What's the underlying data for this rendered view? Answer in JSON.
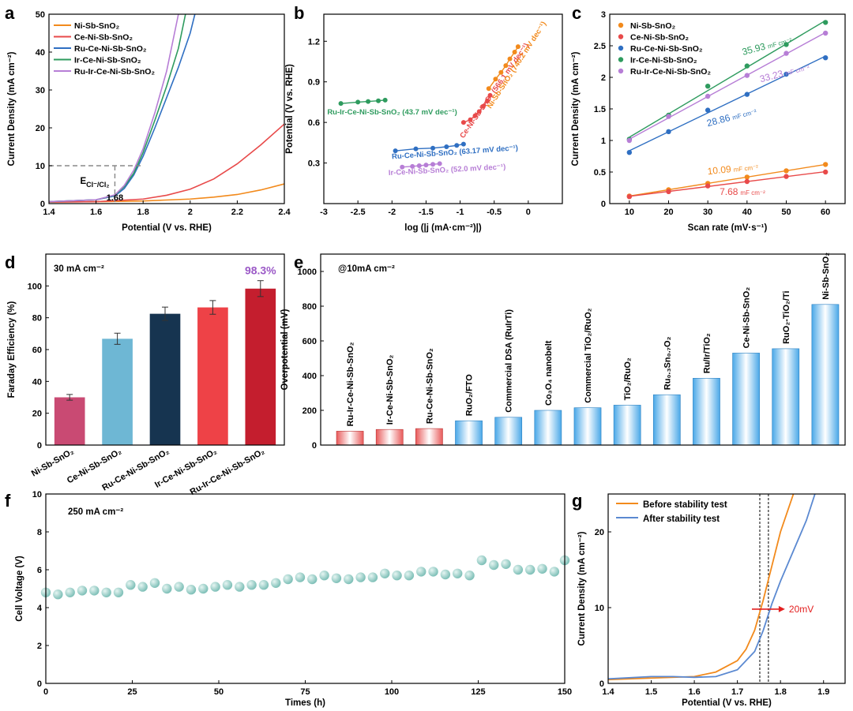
{
  "panels": {
    "a": {
      "letter": "a"
    },
    "b": {
      "letter": "b"
    },
    "c": {
      "letter": "c"
    },
    "d": {
      "letter": "d"
    },
    "e": {
      "letter": "e"
    },
    "f": {
      "letter": "f"
    },
    "g": {
      "letter": "g"
    }
  },
  "chart_data": [
    {
      "id": "a",
      "type": "line",
      "xlabel": "Potential (V vs. RHE)",
      "ylabel": "Current Density (mA cm⁻²)",
      "xlim": [
        1.4,
        2.4
      ],
      "ylim": [
        0,
        50
      ],
      "xticks": [
        1.4,
        1.6,
        1.8,
        2.0,
        2.2,
        2.4
      ],
      "yticks": [
        0,
        10,
        20,
        30,
        40,
        50
      ],
      "extra_tick": "1.68",
      "annotation_main": "E",
      "annotation_sub": "Cl⁻/Cl₂",
      "annotation_x": 1.68,
      "annotation_y": 10,
      "series": [
        {
          "name": "Ni-Sb-SnO₂",
          "color": "#f28a1c",
          "x": [
            1.4,
            1.6,
            1.8,
            2.0,
            2.1,
            2.2,
            2.3,
            2.4
          ],
          "y": [
            0.4,
            0.5,
            0.7,
            1.2,
            1.7,
            2.4,
            3.6,
            5.2
          ]
        },
        {
          "name": "Ce-Ni-Sb-SnO₂",
          "color": "#e84a4a",
          "x": [
            1.4,
            1.6,
            1.8,
            1.9,
            2.0,
            2.1,
            2.2,
            2.3,
            2.4
          ],
          "y": [
            0.4,
            0.5,
            1.2,
            2.2,
            3.8,
            6.5,
            10.5,
            15.5,
            21.0
          ]
        },
        {
          "name": "Ru-Ce-Ni-Sb-SnO₂",
          "color": "#2f6fc2",
          "x": [
            1.4,
            1.6,
            1.68,
            1.72,
            1.76,
            1.8,
            1.85,
            1.9,
            1.95,
            2.0,
            2.02
          ],
          "y": [
            0.5,
            1.0,
            2.0,
            4.0,
            7.5,
            12.5,
            20.0,
            28.0,
            36.0,
            45.0,
            50.0
          ]
        },
        {
          "name": "Ir-Ce-Ni-Sb-SnO₂",
          "color": "#2e9b5e",
          "x": [
            1.4,
            1.6,
            1.68,
            1.72,
            1.76,
            1.8,
            1.85,
            1.9,
            1.95,
            1.98
          ],
          "y": [
            0.5,
            1.0,
            2.2,
            4.5,
            8.0,
            13.5,
            22.0,
            31.0,
            41.0,
            50.0
          ]
        },
        {
          "name": "Ru-Ir-Ce-Ni-Sb-SnO₂",
          "color": "#b77ed6",
          "x": [
            1.4,
            1.6,
            1.68,
            1.72,
            1.76,
            1.8,
            1.85,
            1.9,
            1.95
          ],
          "y": [
            0.5,
            1.0,
            2.3,
            4.8,
            8.8,
            14.5,
            24.0,
            35.0,
            50.0
          ]
        }
      ]
    },
    {
      "id": "b",
      "type": "scatter",
      "xlabel": "log (|j (mA·cm⁻²)|)",
      "ylabel": "Potential (V vs. RHE)",
      "xlim": [
        -3.0,
        0.5
      ],
      "ylim": [
        0.0,
        1.4
      ],
      "xticks": [
        -3.0,
        -2.5,
        -2.0,
        -1.5,
        -1.0,
        -0.5,
        0.0
      ],
      "yticks": [
        0.3,
        0.6,
        0.9,
        1.2
      ],
      "series": [
        {
          "name": "Ru-Ir-Ce-Ni-Sb-SnO₂",
          "color": "#2e9b5e",
          "label": "Ru-Ir-Ce-Ni-Sb-SnO₂ (43.7 mV dec⁻¹)",
          "x": [
            -2.75,
            -2.5,
            -2.35,
            -2.2,
            -2.1
          ],
          "y": [
            0.74,
            0.75,
            0.755,
            0.76,
            0.765
          ]
        },
        {
          "name": "Ru-Ce-Ni-Sb-SnO₂",
          "color": "#2f6fc2",
          "label": "Ru-Ce-Ni-Sb-SnO₂ (63.17 mV dec⁻¹)",
          "x": [
            -1.95,
            -1.65,
            -1.4,
            -1.2,
            -1.05,
            -0.95
          ],
          "y": [
            0.39,
            0.405,
            0.41,
            0.42,
            0.43,
            0.44
          ]
        },
        {
          "name": "Ir-Ce-Ni-Sb-SnO₂",
          "color": "#b77ed6",
          "label": "Ir-Ce-Ni-Sb-SnO₂ (52.0 mV dec⁻¹)",
          "x": [
            -1.85,
            -1.7,
            -1.6,
            -1.5,
            -1.4,
            -1.3
          ],
          "y": [
            0.27,
            0.275,
            0.28,
            0.285,
            0.29,
            0.295
          ]
        },
        {
          "name": "Ce-Ni-Sb-SnO₂",
          "color": "#e84a4a",
          "label": "Ce-Ni-Sb-SnO₂ (566.1 mV dec⁻¹)",
          "x": [
            -0.95,
            -0.85,
            -0.78,
            -0.72,
            -0.66,
            -0.6,
            -0.56
          ],
          "y": [
            0.6,
            0.62,
            0.65,
            0.68,
            0.72,
            0.76,
            0.8
          ]
        },
        {
          "name": "Ni-Sb-SnO₂",
          "color": "#f28a1c",
          "label": "Ni-Sb-SnO₂ (740.2 mV dec⁻¹)",
          "x": [
            -0.58,
            -0.48,
            -0.4,
            -0.33,
            -0.27,
            -0.2,
            -0.15
          ],
          "y": [
            0.85,
            0.92,
            0.97,
            1.02,
            1.07,
            1.12,
            1.16
          ]
        }
      ]
    },
    {
      "id": "c",
      "type": "scatter",
      "xlabel": "Scan rate (mV·s⁻¹)",
      "ylabel": "Current Density (mA cm⁻²)",
      "xlim": [
        5,
        65
      ],
      "ylim": [
        0,
        3.0
      ],
      "xticks": [
        10,
        20,
        30,
        40,
        50,
        60
      ],
      "yticks": [
        0.0,
        0.5,
        1.0,
        1.5,
        2.0,
        2.5,
        3.0
      ],
      "x": [
        10,
        20,
        30,
        40,
        50,
        60
      ],
      "series": [
        {
          "name": "Ni-Sb-SnO₂",
          "color": "#f28a1c",
          "values": [
            0.12,
            0.22,
            0.32,
            0.42,
            0.52,
            0.62
          ],
          "cap": "10.09",
          "unit": "mF cm⁻²"
        },
        {
          "name": "Ce-Ni-Sb-SnO₂",
          "color": "#e84a4a",
          "values": [
            0.11,
            0.19,
            0.28,
            0.35,
            0.43,
            0.5
          ],
          "cap": "7.68",
          "unit": "mF cm⁻²"
        },
        {
          "name": "Ru-Ce-Ni-Sb-SnO₂",
          "color": "#2f6fc2",
          "values": [
            0.81,
            1.14,
            1.48,
            1.73,
            2.05,
            2.31
          ],
          "cap": "28.86",
          "unit": "mF cm⁻²"
        },
        {
          "name": "Ir-Ce-Ni-Sb-SnO₂",
          "color": "#2e9b5e",
          "values": [
            1.02,
            1.4,
            1.86,
            2.18,
            2.52,
            2.87
          ],
          "cap": "35.93",
          "unit": "mF cm⁻²"
        },
        {
          "name": "Ru-Ir-Ce-Ni-Sb-SnO₂",
          "color": "#b77ed6",
          "values": [
            1.0,
            1.38,
            1.7,
            2.03,
            2.38,
            2.7
          ],
          "cap": "33.23",
          "unit": "mF cm⁻²"
        }
      ]
    },
    {
      "id": "d",
      "type": "bar",
      "title": "30 mA cm⁻²",
      "top_label": "98.3%",
      "ylabel": "Faraday Efficiency (%)",
      "ylim": [
        0,
        120
      ],
      "yticks": [
        0,
        20,
        40,
        60,
        80,
        100
      ],
      "categories": [
        "Ni-Sb-SnO₂",
        "Ce-Ni-Sb-SnO₂",
        "Ru-Ce-Ni-Sb-SnO₂",
        "Ir-Ce-Ni-Sb-SnO₂",
        "Ru-Ir-Ce-Ni-Sb-SnO₂"
      ],
      "values": [
        30.0,
        66.8,
        82.5,
        86.5,
        98.3
      ],
      "errors": [
        1.8,
        3.5,
        4.2,
        4.3,
        5.0
      ],
      "colors": [
        "#c94a73",
        "#6eb7d4",
        "#163450",
        "#ee4247",
        "#c41e2e"
      ]
    },
    {
      "id": "e",
      "type": "bar",
      "title": "@10mA cm⁻²",
      "ylabel": "Overpotential (mV)",
      "ylim": [
        0,
        1100
      ],
      "yticks": [
        0,
        200,
        400,
        600,
        800,
        1000
      ],
      "categories": [
        "Ru-Ir-Ce-Ni-Sb-SnO₂",
        "Ir-Ce-Ni-Sb-SnO₂",
        "Ru-Ce-Ni-Sb-SnO₂",
        "RuO₂/FTO",
        "Commercial DSA (RuIrTi)",
        "Co₃O₄ nanobelt",
        "Commercial TiO₂/RuO₂",
        "TiO₂/RuO₂",
        "Ru₀.₃Sn₀.₇O₂",
        "Ru/Ir/TiO₂",
        "Ce-Ni-Sb-SnO₂",
        "RuO₂-TiO₂/Ti",
        "Ni-Sb-SnO₂"
      ],
      "values": [
        80,
        90,
        95,
        140,
        160,
        200,
        215,
        230,
        290,
        385,
        530,
        555,
        810
      ],
      "highlight_count": 3,
      "colors": {
        "highlight": "#e85a5a",
        "other": "#4aa8e8"
      }
    },
    {
      "id": "f",
      "type": "scatter",
      "title": "250 mA cm⁻²",
      "xlabel": "Times (h)",
      "ylabel": "Cell Voltage (V)",
      "xlim": [
        0,
        150
      ],
      "ylim": [
        0,
        10
      ],
      "xticks": [
        0,
        25,
        50,
        75,
        100,
        125,
        150
      ],
      "yticks": [
        0,
        2,
        4,
        6,
        8,
        10
      ],
      "color": "#7fc0b8",
      "x": [
        0,
        3.5,
        7,
        10.5,
        14,
        17.5,
        21,
        24.5,
        28,
        31.5,
        35,
        38.5,
        42,
        45.5,
        49,
        52.5,
        56,
        59.5,
        63,
        66.5,
        70,
        73.5,
        77,
        80.5,
        84,
        87.5,
        91,
        94.5,
        98,
        101.5,
        105,
        108.5,
        112,
        115.5,
        119,
        122.5,
        126,
        129.5,
        133,
        136.5,
        140,
        143.5,
        147,
        150
      ],
      "y": [
        4.8,
        4.7,
        4.8,
        4.9,
        4.9,
        4.8,
        4.8,
        5.2,
        5.1,
        5.3,
        5.0,
        5.1,
        4.95,
        5.0,
        5.1,
        5.2,
        5.1,
        5.2,
        5.2,
        5.3,
        5.5,
        5.6,
        5.5,
        5.7,
        5.55,
        5.5,
        5.6,
        5.6,
        5.8,
        5.7,
        5.7,
        5.9,
        5.9,
        5.75,
        5.8,
        5.7,
        6.5,
        6.25,
        6.3,
        6.0,
        6.0,
        6.05,
        5.9,
        6.5
      ]
    },
    {
      "id": "g",
      "type": "line",
      "xlabel": "Potential (V vs. RHE)",
      "ylabel": "Current Density (mA cm⁻²)",
      "xlim": [
        1.4,
        1.95
      ],
      "ylim": [
        0,
        25
      ],
      "xticks": [
        1.4,
        1.5,
        1.6,
        1.7,
        1.8,
        1.9
      ],
      "yticks": [
        0,
        10,
        20
      ],
      "shift_label": "20mV",
      "vlines": [
        1.752,
        1.772
      ],
      "series": [
        {
          "name": "Before stability test",
          "color": "#f28a1c",
          "x": [
            1.4,
            1.5,
            1.6,
            1.65,
            1.7,
            1.72,
            1.74,
            1.76,
            1.78,
            1.8,
            1.83
          ],
          "y": [
            0.5,
            0.7,
            0.9,
            1.5,
            3.0,
            4.5,
            7.0,
            11.0,
            15.5,
            20.0,
            25.0
          ]
        },
        {
          "name": "After stability test",
          "color": "#5b89d1",
          "x": [
            1.4,
            1.5,
            1.55,
            1.6,
            1.65,
            1.7,
            1.74,
            1.76,
            1.78,
            1.8,
            1.83,
            1.86,
            1.88
          ],
          "y": [
            0.6,
            0.9,
            0.9,
            0.8,
            0.9,
            1.8,
            4.2,
            7.0,
            10.5,
            13.5,
            17.5,
            21.5,
            25.0
          ]
        }
      ]
    }
  ]
}
